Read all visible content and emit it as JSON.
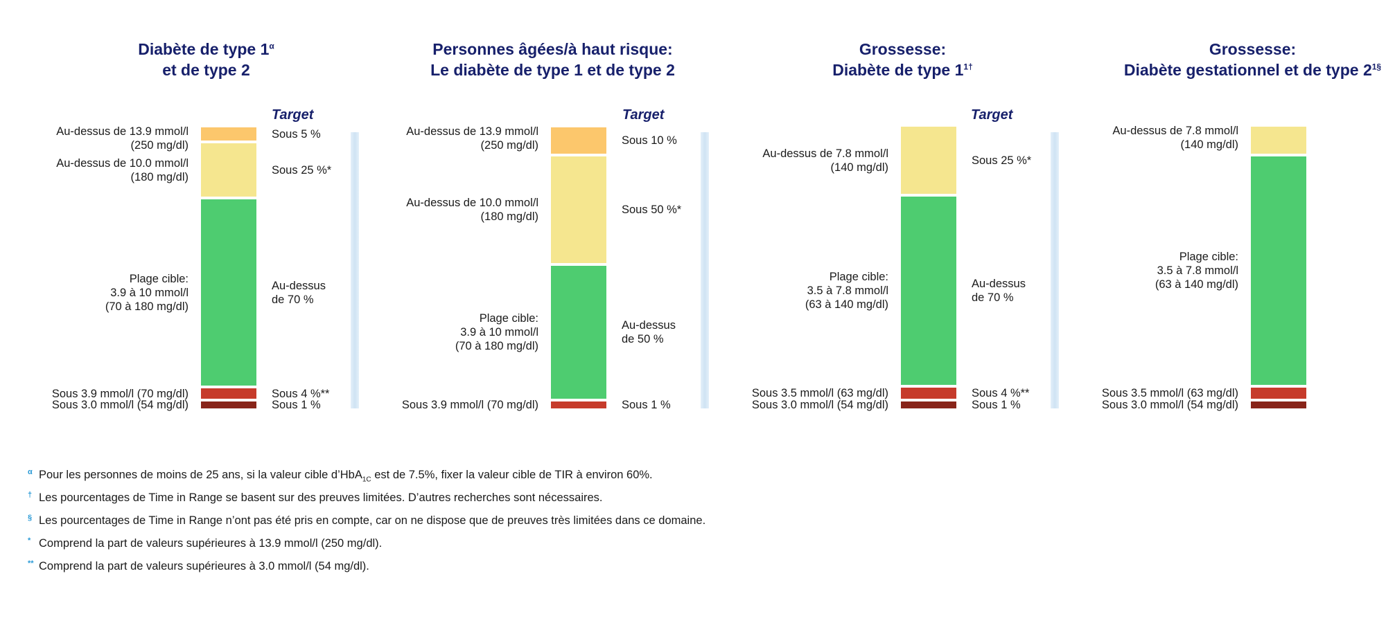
{
  "colors": {
    "very_high": "#fcc76c",
    "high": "#f5e68f",
    "target": "#4ecc70",
    "low": "#c63b2b",
    "very_low": "#882419",
    "title": "#17206b",
    "footnote_mark": "#2a9ad6"
  },
  "chart_data": [
    {
      "type": "stacked-bar",
      "title_line1": "Diabète de type 1",
      "title_sup1": "α",
      "title_line2": "et de type 2",
      "target_header": "Target",
      "segments": [
        {
          "key": "very_low",
          "label": "Sous 3.0 mmol/l (54 mg/dl)",
          "target": "Sous 1 %",
          "value": 1
        },
        {
          "key": "low",
          "label": "Sous 3.9 mmol/l (70 mg/dl)",
          "target": "Sous 4 %**",
          "value": 4
        },
        {
          "key": "target",
          "label": "Plage cible:\n3.9 à 10 mmol/l\n(70 à 180 mg/dl)",
          "target": "Au-dessus\nde 70 %",
          "value": 70
        },
        {
          "key": "high",
          "label": "Au-dessus de 10.0 mmol/l\n(180 mg/dl)",
          "target": "Sous 25 %*",
          "value": 20
        },
        {
          "key": "very_high",
          "label": "Au-dessus de 13.9 mmol/l\n(250 mg/dl)",
          "target": "Sous 5 %",
          "value": 5
        }
      ]
    },
    {
      "type": "stacked-bar",
      "title_line1": "Personnes âgées/à haut risque:",
      "title_line2": "Le diabète de type 1 et de type 2",
      "target_header": "Target",
      "segments": [
        {
          "key": "low",
          "label": "Sous 3.9 mmol/l (70 mg/dl)",
          "target": "Sous 1 %",
          "value": 1
        },
        {
          "key": "target",
          "label": "Plage cible:\n3.9 à 10 mmol/l\n(70 à 180 mg/dl)",
          "target": "Au-dessus\nde 50 %",
          "value": 50
        },
        {
          "key": "high",
          "label": "Au-dessus de 10.0 mmol/l\n(180 mg/dl)",
          "target": "Sous 50 %*",
          "value": 40
        },
        {
          "key": "very_high",
          "label": "Au-dessus de 13.9 mmol/l\n(250 mg/dl)",
          "target": "Sous 10 %",
          "value": 10
        }
      ]
    },
    {
      "type": "stacked-bar",
      "title_line1": "Grossesse:",
      "title_line2": "Diabète de type 1",
      "title_sup2": "1†",
      "target_header": "Target",
      "segments": [
        {
          "key": "very_low",
          "label": "Sous 3.0 mmol/l (54 mg/dl)",
          "target": "Sous 1 %",
          "value": 1
        },
        {
          "key": "low",
          "label": "Sous 3.5 mmol/l (63 mg/dl)",
          "target": "Sous 4 %**",
          "value": 4
        },
        {
          "key": "target",
          "label": "Plage cible:\n3.5 à 7.8 mmol/l\n(63 à 140 mg/dl)",
          "target": "Au-dessus\nde 70 %",
          "value": 70
        },
        {
          "key": "high",
          "label": "Au-dessus de 7.8 mmol/l\n(140 mg/dl)",
          "target": "Sous 25 %*",
          "value": 25
        }
      ]
    },
    {
      "type": "stacked-bar",
      "title_line1": "Grossesse:",
      "title_line2": "Diabète gestationnel et de type 2",
      "title_sup2": "1§",
      "segments": [
        {
          "key": "very_low",
          "label": "Sous 3.0 mmol/l (54 mg/dl)",
          "value": 1
        },
        {
          "key": "low",
          "label": "Sous 3.5 mmol/l (63 mg/dl)",
          "value": 4
        },
        {
          "key": "target",
          "label": "Plage cible:\n3.5 à 7.8 mmol/l\n(63 à 140 mg/dl)",
          "value": 85
        },
        {
          "key": "high",
          "label": "Au-dessus de 7.8 mmol/l\n(140 mg/dl)",
          "value": 10
        }
      ]
    }
  ],
  "footnotes": [
    {
      "mark": "α",
      "pre": "Pour les personnes de moins de 25 ans, si la valeur cible d’HbA",
      "sub": "1C",
      "post": " est de 7.5%, fixer la valeur cible de TIR à environ 60%."
    },
    {
      "mark": "†",
      "pre": "Les pourcentages de Time in Range se basent sur des preuves limitées. D’autres recherches sont nécessaires."
    },
    {
      "mark": "§",
      "pre": "Les pourcentages de Time in Range n’ont pas été pris en compte, car on ne dispose que de preuves très limitées dans ce domaine."
    },
    {
      "mark": "*",
      "pre": "Comprend la part de valeurs supérieures à 13.9 mmol/l (250 mg/dl)."
    },
    {
      "mark": "**",
      "pre": "Comprend la part de valeurs supérieures à 3.0 mmol/l (54 mg/dl)."
    }
  ]
}
